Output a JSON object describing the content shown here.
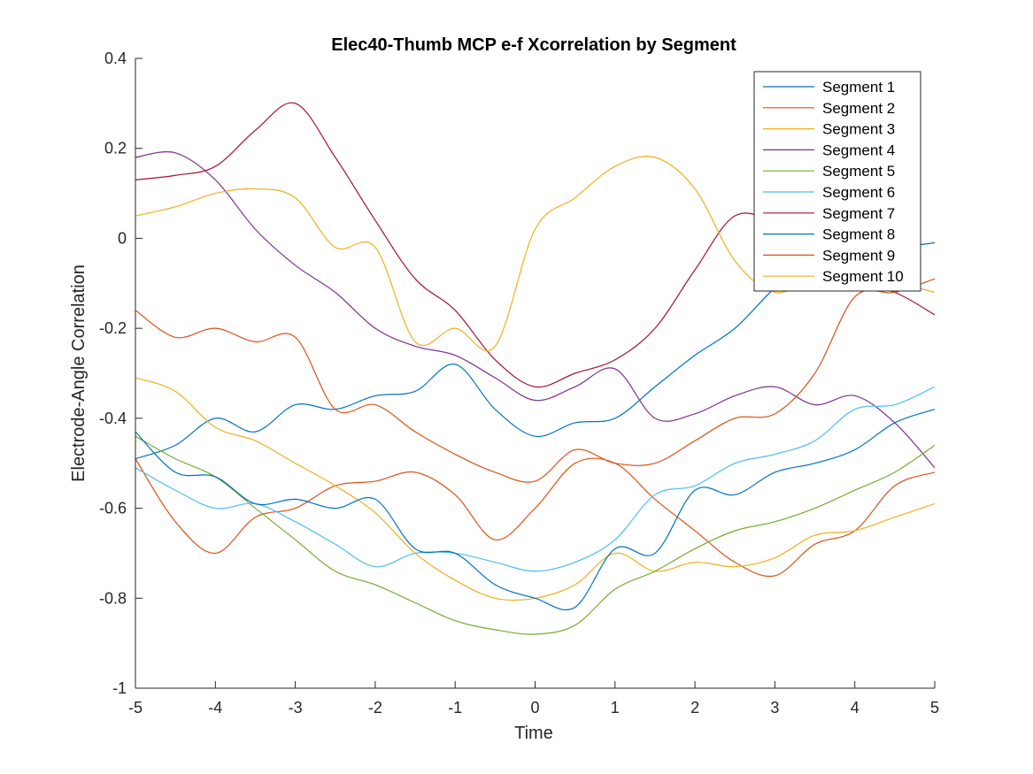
{
  "chart_data": {
    "type": "line",
    "title": "Elec40-Thumb MCP e-f Xcorrelation by Segment",
    "xlabel": "Time",
    "ylabel": "Electrode-Angle Correlation",
    "xlim": [
      -5,
      5
    ],
    "ylim": [
      -1,
      0.4
    ],
    "xticks": [
      -5,
      -4,
      -3,
      -2,
      -1,
      0,
      1,
      2,
      3,
      4,
      5
    ],
    "yticks": [
      -1,
      -0.8,
      -0.6,
      -0.4,
      -0.2,
      0,
      0.2,
      0.4
    ],
    "xtick_labels": [
      "-5",
      "-4",
      "-3",
      "-2",
      "-1",
      "0",
      "1",
      "2",
      "3",
      "4",
      "5"
    ],
    "ytick_labels": [
      "-1",
      "-0.8",
      "-0.6",
      "-0.4",
      "-0.2",
      "0",
      "0.2",
      "0.4"
    ],
    "grid": false,
    "legend_position": "top-right",
    "x": [
      -5,
      -4.5,
      -4,
      -3.5,
      -3,
      -2.5,
      -2,
      -1.5,
      -1,
      -0.5,
      0,
      0.5,
      1,
      1.5,
      2,
      2.5,
      3,
      3.5,
      4,
      4.5,
      5
    ],
    "series": [
      {
        "name": "Segment 1",
        "color": "#0072BD",
        "values": [
          -0.49,
          -0.46,
          -0.4,
          -0.43,
          -0.37,
          -0.38,
          -0.35,
          -0.34,
          -0.28,
          -0.38,
          -0.44,
          -0.41,
          -0.4,
          -0.33,
          -0.26,
          -0.2,
          -0.11,
          -0.04,
          -0.02,
          -0.02,
          -0.01
        ]
      },
      {
        "name": "Segment 2",
        "color": "#D95319",
        "values": [
          -0.49,
          -0.63,
          -0.7,
          -0.62,
          -0.6,
          -0.55,
          -0.54,
          -0.52,
          -0.57,
          -0.67,
          -0.6,
          -0.5,
          -0.5,
          -0.58,
          -0.65,
          -0.72,
          -0.75,
          -0.68,
          -0.65,
          -0.55,
          -0.52
        ]
      },
      {
        "name": "Segment 3",
        "color": "#EDB120",
        "values": [
          -0.31,
          -0.34,
          -0.42,
          -0.45,
          -0.5,
          -0.55,
          -0.61,
          -0.7,
          -0.76,
          -0.8,
          -0.8,
          -0.77,
          -0.7,
          -0.74,
          -0.72,
          -0.73,
          -0.71,
          -0.66,
          -0.65,
          -0.62,
          -0.59
        ]
      },
      {
        "name": "Segment 4",
        "color": "#7E2F8E",
        "values": [
          0.18,
          0.19,
          0.13,
          0.02,
          -0.06,
          -0.12,
          -0.2,
          -0.24,
          -0.26,
          -0.31,
          -0.36,
          -0.33,
          -0.29,
          -0.4,
          -0.39,
          -0.35,
          -0.33,
          -0.37,
          -0.35,
          -0.41,
          -0.51
        ]
      },
      {
        "name": "Segment 5",
        "color": "#77AC30",
        "values": [
          -0.44,
          -0.49,
          -0.53,
          -0.6,
          -0.67,
          -0.74,
          -0.77,
          -0.81,
          -0.85,
          -0.87,
          -0.88,
          -0.86,
          -0.78,
          -0.74,
          -0.69,
          -0.65,
          -0.63,
          -0.6,
          -0.56,
          -0.52,
          -0.46
        ]
      },
      {
        "name": "Segment 6",
        "color": "#4DBEEE",
        "values": [
          -0.51,
          -0.56,
          -0.6,
          -0.59,
          -0.63,
          -0.68,
          -0.73,
          -0.7,
          -0.7,
          -0.72,
          -0.74,
          -0.72,
          -0.67,
          -0.57,
          -0.55,
          -0.5,
          -0.48,
          -0.45,
          -0.38,
          -0.37,
          -0.33
        ]
      },
      {
        "name": "Segment 7",
        "color": "#A2142F",
        "values": [
          0.13,
          0.14,
          0.16,
          0.24,
          0.3,
          0.18,
          0.04,
          -0.09,
          -0.16,
          -0.27,
          -0.33,
          -0.3,
          -0.27,
          -0.2,
          -0.07,
          0.05,
          0.03,
          -0.05,
          -0.1,
          -0.12,
          -0.17
        ]
      },
      {
        "name": "Segment 8",
        "color": "#0072BD",
        "values": [
          -0.43,
          -0.52,
          -0.53,
          -0.59,
          -0.58,
          -0.6,
          -0.58,
          -0.69,
          -0.7,
          -0.77,
          -0.8,
          -0.82,
          -0.69,
          -0.7,
          -0.56,
          -0.57,
          -0.52,
          -0.5,
          -0.47,
          -0.41,
          -0.38
        ]
      },
      {
        "name": "Segment 9",
        "color": "#D95319",
        "values": [
          -0.16,
          -0.22,
          -0.2,
          -0.23,
          -0.22,
          -0.38,
          -0.37,
          -0.43,
          -0.48,
          -0.52,
          -0.54,
          -0.47,
          -0.5,
          -0.5,
          -0.45,
          -0.4,
          -0.39,
          -0.3,
          -0.13,
          -0.12,
          -0.09
        ]
      },
      {
        "name": "Segment 10",
        "color": "#EDB120",
        "values": [
          0.05,
          0.07,
          0.1,
          0.11,
          0.09,
          -0.02,
          -0.02,
          -0.23,
          -0.2,
          -0.24,
          0.02,
          0.09,
          0.16,
          0.18,
          0.11,
          -0.05,
          -0.12,
          -0.09,
          -0.1,
          -0.1,
          -0.12
        ]
      }
    ]
  }
}
